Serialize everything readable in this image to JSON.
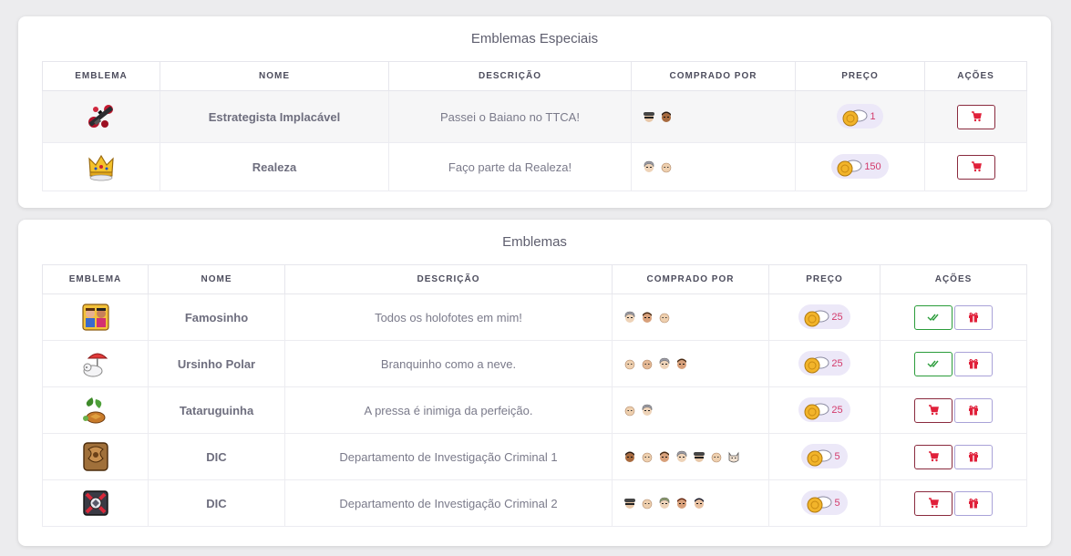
{
  "special": {
    "title": "Emblemas Especiais",
    "columns": [
      "Emblema",
      "Nome",
      "Descrição",
      "Comprado por",
      "Preço",
      "Ações"
    ],
    "rows": [
      {
        "name": "Estrategista Implacável",
        "description": "Passei o Baiano no TTCA!",
        "price": "1",
        "badge_icon": "rifle-badge-icon",
        "buyers": [
          "avatar-cap",
          "avatar-dark"
        ],
        "action": "cart"
      },
      {
        "name": "Realeza",
        "description": "Faço parte da Realeza!",
        "price": "150",
        "badge_icon": "crown-badge-icon",
        "buyers": [
          "avatar-grey",
          "avatar-light"
        ],
        "action": "cart"
      }
    ]
  },
  "main": {
    "title": "Emblemas",
    "columns": [
      "Emblema",
      "Nome",
      "Descrição",
      "Comprado por",
      "Preço",
      "Ações"
    ],
    "rows": [
      {
        "name": "Famosinho",
        "description": "Todos os holofotes em mim!",
        "price": "25",
        "badge_icon": "famous-badge-icon",
        "buyers": [
          "avatar-grey",
          "avatar-brown",
          "avatar-light"
        ],
        "action": "owned"
      },
      {
        "name": "Ursinho Polar",
        "description": "Branquinho como a neve.",
        "price": "25",
        "badge_icon": "polar-bear-badge-icon",
        "buyers": [
          "avatar-light",
          "avatar-light",
          "avatar-grey",
          "avatar-brown"
        ],
        "action": "owned"
      },
      {
        "name": "Tataruguinha",
        "description": "A pressa é inimiga da perfeição.",
        "price": "25",
        "badge_icon": "turtle-badge-icon",
        "buyers": [
          "avatar-light",
          "avatar-grey"
        ],
        "action": "cart"
      },
      {
        "name": "DIC",
        "description": "Departamento de Investigação Criminal 1",
        "price": "5",
        "badge_icon": "dic-gold-badge-icon",
        "buyers": [
          "avatar-dark",
          "avatar-light",
          "avatar-brown",
          "avatar-grey",
          "avatar-cap",
          "avatar-light",
          "avatar-cat"
        ],
        "action": "cart"
      },
      {
        "name": "DIC",
        "description": "Departamento de Investigação Criminal 2",
        "price": "5",
        "badge_icon": "dic-red-badge-icon",
        "buyers": [
          "avatar-cap",
          "avatar-light",
          "avatar-grey",
          "avatar-brown",
          "avatar-dark"
        ],
        "action": "cart"
      }
    ]
  },
  "colors": {
    "accent": "#d33a6b",
    "check": "#2a9c3a",
    "gift": "#a9a2d8",
    "cart_border": "#8a2a3e"
  }
}
